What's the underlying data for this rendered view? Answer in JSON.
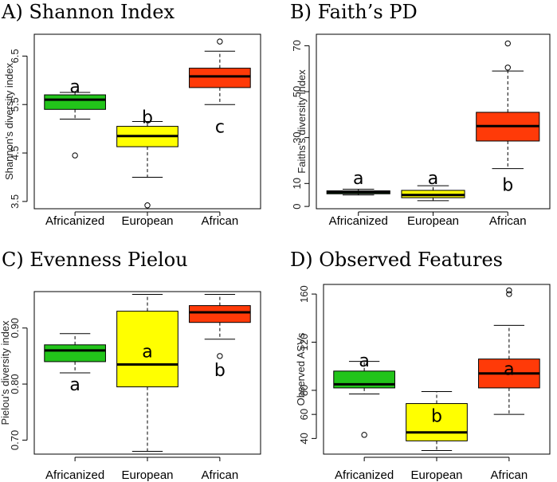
{
  "chart_data": [
    {
      "type": "box",
      "title": "A) Shannon Index",
      "ylabel": "Shannon's diversity index",
      "ylim": [
        3.35,
        6.95
      ],
      "yticks": [
        3.5,
        4.5,
        5.5,
        6.5
      ],
      "ytick_labels": [
        "3.5",
        "4.5",
        "5.5",
        "6.5"
      ],
      "categories": [
        "Africanized",
        "European",
        "African"
      ],
      "boxes": [
        {
          "category": "Africanized",
          "color": "#22c41a",
          "lower_whisker": 5.2,
          "q1": 5.4,
          "median": 5.6,
          "q3": 5.7,
          "upper_whisker": 5.75,
          "outliers": [
            4.45
          ],
          "letter": "a",
          "letter_value": 5.88
        },
        {
          "category": "European",
          "color": "#ffff00",
          "lower_whisker": 4.0,
          "q1": 4.63,
          "median": 4.85,
          "q3": 5.05,
          "upper_whisker": 5.15,
          "outliers": [
            3.42
          ],
          "letter": "b",
          "letter_value": 5.25
        },
        {
          "category": "African",
          "color": "#ff3a08",
          "lower_whisker": 5.5,
          "q1": 5.85,
          "median": 6.08,
          "q3": 6.25,
          "upper_whisker": 6.6,
          "outliers": [
            6.8
          ],
          "letter": "c",
          "letter_value": 5.05
        }
      ]
    },
    {
      "type": "box",
      "title": "B) Faith’s PD",
      "ylabel": "Faiths's diversity index",
      "ylim": [
        -1,
        75
      ],
      "yticks": [
        0,
        10,
        30,
        50,
        70
      ],
      "ytick_labels": [
        "0",
        "10",
        "30",
        "50",
        "70"
      ],
      "categories": [
        "Africanized",
        "European",
        "African"
      ],
      "boxes": [
        {
          "category": "Africanized",
          "color": "#22c41a",
          "lower_whisker": 5.0,
          "q1": 5.5,
          "median": 6.2,
          "q3": 6.8,
          "upper_whisker": 7.5,
          "outliers": [],
          "letter": "a",
          "letter_value": 12.5
        },
        {
          "category": "European",
          "color": "#ffff00",
          "lower_whisker": 2.5,
          "q1": 3.8,
          "median": 5.0,
          "q3": 7.0,
          "upper_whisker": 9.0,
          "outliers": [],
          "letter": "a",
          "letter_value": 12.5
        },
        {
          "category": "African",
          "color": "#ff3a08",
          "lower_whisker": 16.5,
          "q1": 28.5,
          "median": 35.0,
          "q3": 41.0,
          "upper_whisker": 59.0,
          "outliers": [
            60.5,
            71.0
          ],
          "letter": "b",
          "letter_value": 9.5
        }
      ]
    },
    {
      "type": "box",
      "title": "C) Evenness Pielou",
      "ylabel": "Pielou's diversity index",
      "ylim": [
        0.675,
        0.965
      ],
      "yticks": [
        0.7,
        0.8,
        0.9
      ],
      "ytick_labels": [
        "0.70",
        "0.80",
        "0.90"
      ],
      "categories": [
        "Africanized",
        "European",
        "African"
      ],
      "boxes": [
        {
          "category": "Africanized",
          "color": "#22c41a",
          "lower_whisker": 0.82,
          "q1": 0.84,
          "median": 0.86,
          "q3": 0.87,
          "upper_whisker": 0.89,
          "outliers": [],
          "letter": "a",
          "letter_value": 0.8
        },
        {
          "category": "European",
          "color": "#ffff00",
          "lower_whisker": 0.68,
          "q1": 0.795,
          "median": 0.835,
          "q3": 0.93,
          "upper_whisker": 0.96,
          "outliers": [],
          "letter": "a",
          "letter_value": 0.859
        },
        {
          "category": "African",
          "color": "#ff3a08",
          "lower_whisker": 0.88,
          "q1": 0.91,
          "median": 0.928,
          "q3": 0.94,
          "upper_whisker": 0.96,
          "outliers": [
            0.85
          ],
          "letter": "b",
          "letter_value": 0.826
        }
      ]
    },
    {
      "type": "box",
      "title": "D) Observed Features",
      "ylabel": "Observed ASVs",
      "ylim": [
        27,
        168
      ],
      "yticks": [
        40,
        60,
        80,
        120,
        160
      ],
      "ytick_labels": [
        "40",
        "60",
        "80",
        "120",
        "160"
      ],
      "categories": [
        "Africanized",
        "European",
        "African"
      ],
      "boxes": [
        {
          "category": "Africanized",
          "color": "#22c41a",
          "lower_whisker": 77,
          "q1": 82,
          "median": 85,
          "q3": 96,
          "upper_whisker": 104,
          "outliers": [
            43
          ],
          "letter": "a",
          "letter_value": 105
        },
        {
          "category": "European",
          "color": "#ffff00",
          "lower_whisker": 30,
          "q1": 38,
          "median": 45,
          "q3": 69,
          "upper_whisker": 79,
          "outliers": [],
          "letter": "b",
          "letter_value": 59
        },
        {
          "category": "African",
          "color": "#ff3a08",
          "lower_whisker": 60,
          "q1": 82,
          "median": 94,
          "q3": 106,
          "upper_whisker": 134,
          "outliers": [
            160,
            163
          ],
          "letter": "a",
          "letter_value": 98
        }
      ]
    }
  ]
}
